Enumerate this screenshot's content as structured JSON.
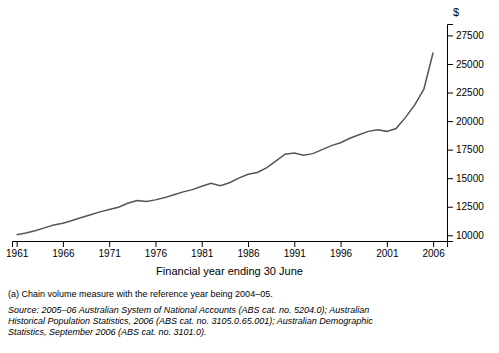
{
  "chart_data": {
    "type": "line",
    "xlabel": "Financial year ending 30 June",
    "ylabel": "$",
    "annotations": [
      "(a) Chain volume measure with the reference year being 2004–05.",
      "Source: 2005–06 Australian System of National Accounts (ABS cat. no. 5204.0); Australian\nHistorical Population Statistics, 2006 (ABS cat. no. 3105.0.65.001); Australian Demographic\nStatistics, September 2006 (ABS cat. no. 3101.0)."
    ],
    "color": "#555555",
    "xlim": [
      1960.5,
      2007.5
    ],
    "xticks": [
      1961,
      1966,
      1971,
      1976,
      1981,
      1986,
      1991,
      1996,
      2001,
      2006
    ],
    "ylim": [
      9500,
      28500
    ],
    "yticks": [
      10000,
      12500,
      15000,
      17500,
      20000,
      22500,
      25000,
      27500
    ],
    "grid": false,
    "x": [
      1961,
      1962,
      1963,
      1964,
      1965,
      1966,
      1967,
      1968,
      1969,
      1970,
      1971,
      1972,
      1973,
      1974,
      1975,
      1976,
      1977,
      1978,
      1979,
      1980,
      1981,
      1982,
      1983,
      1984,
      1985,
      1986,
      1987,
      1988,
      1989,
      1990,
      1991,
      1992,
      1993,
      1994,
      1995,
      1996,
      1997,
      1998,
      1999,
      2000,
      2001,
      2002,
      2003,
      2004,
      2005,
      2006
    ],
    "values": [
      10050,
      10200,
      10400,
      10650,
      10900,
      11050,
      11300,
      11550,
      11800,
      12050,
      12250,
      12450,
      12800,
      13050,
      12950,
      13100,
      13300,
      13550,
      13800,
      14000,
      14300,
      14550,
      14350,
      14600,
      15000,
      15350,
      15500,
      15900,
      16500,
      17100,
      17200,
      17000,
      17150,
      17500,
      17850,
      18100,
      18500,
      18800,
      19100,
      19250,
      19100,
      19350,
      20300,
      21400,
      22800,
      26000
    ]
  }
}
